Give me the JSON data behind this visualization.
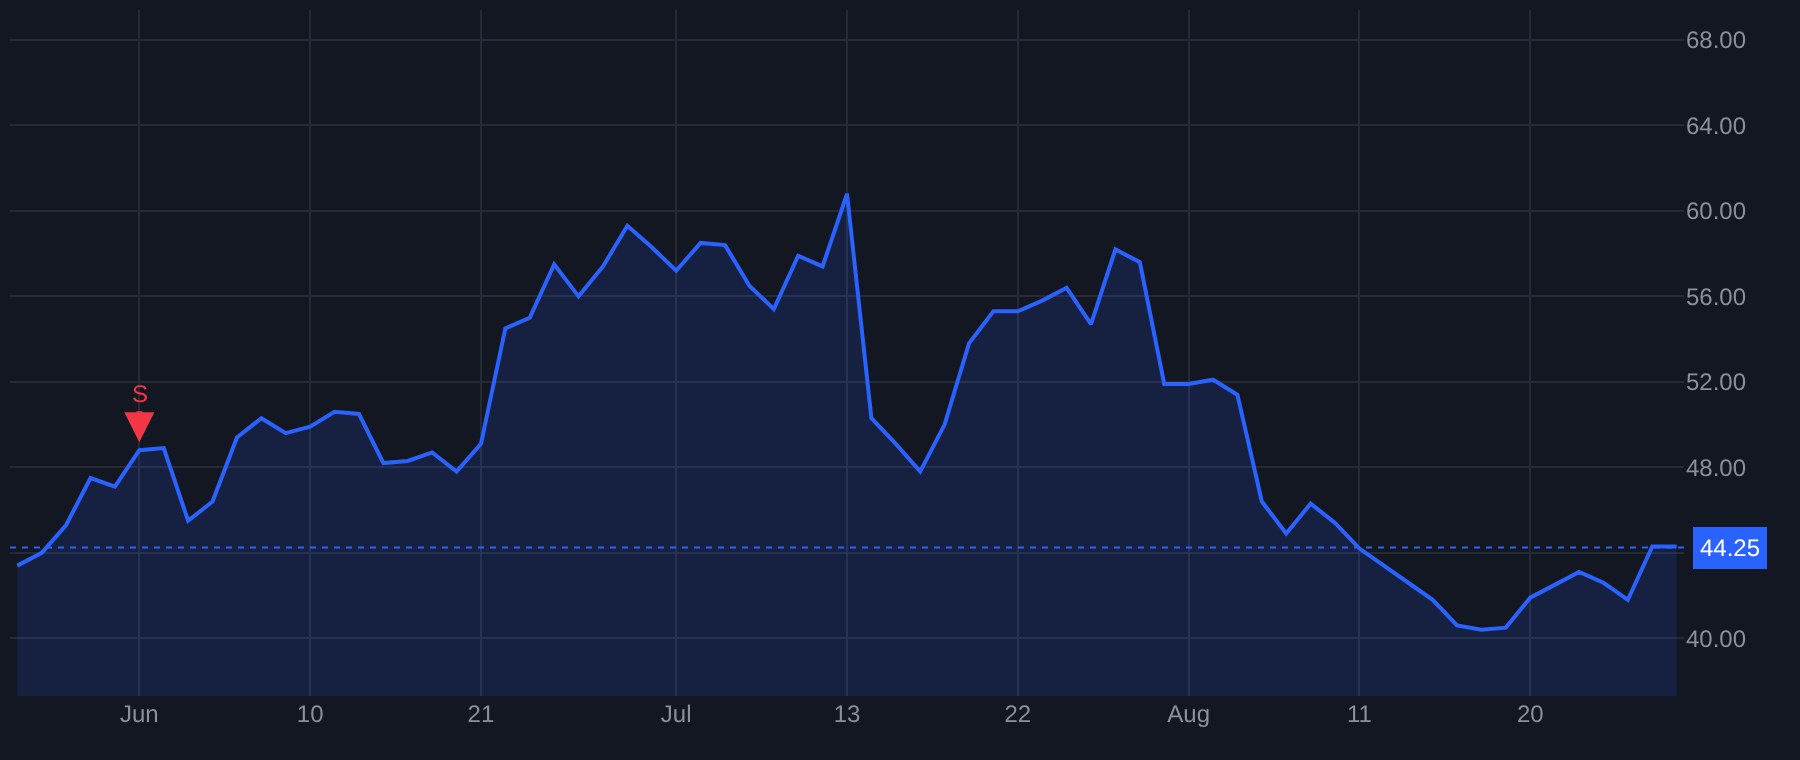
{
  "chart_data": {
    "type": "area",
    "categories": [
      null,
      null,
      null,
      null,
      null,
      "Jun",
      null,
      null,
      null,
      null,
      null,
      null,
      "10",
      null,
      null,
      null,
      null,
      null,
      null,
      "21",
      null,
      null,
      null,
      null,
      null,
      null,
      null,
      "Jul",
      null,
      null,
      null,
      null,
      null,
      null,
      "13",
      null,
      null,
      null,
      null,
      null,
      null,
      "22",
      null,
      null,
      null,
      null,
      null,
      null,
      "Aug",
      null,
      null,
      null,
      null,
      null,
      null,
      "11",
      null,
      null,
      null,
      null,
      null,
      null,
      "20",
      null,
      null,
      null,
      null,
      null,
      null
    ],
    "series": [
      {
        "color": "#2962ff",
        "values": [
          43.4,
          44.0,
          45.3,
          47.5,
          47.1,
          48.8,
          48.9,
          45.5,
          46.4,
          49.4,
          50.3,
          49.6,
          49.9,
          50.6,
          50.5,
          48.2,
          48.3,
          48.7,
          47.8,
          49.1,
          54.5,
          55.0,
          57.5,
          56.0,
          57.4,
          59.3,
          58.3,
          57.2,
          58.5,
          58.4,
          56.5,
          55.4,
          57.9,
          57.4,
          60.8,
          50.3,
          49.1,
          47.8,
          50.0,
          53.8,
          55.3,
          55.3,
          55.8,
          56.4,
          54.7,
          58.2,
          57.6,
          51.9,
          51.9,
          52.1,
          51.4,
          46.4,
          44.9,
          46.3,
          45.4,
          44.2,
          43.4,
          42.6,
          41.8,
          40.6,
          40.4,
          40.5,
          41.9,
          42.5,
          43.1,
          42.6,
          41.8,
          44.3,
          44.3
        ]
      }
    ],
    "ylim": [
      37.3,
      69.4
    ],
    "yticks": [
      {
        "value": 40,
        "label": "40.00"
      },
      {
        "value": 44,
        "label": null
      },
      {
        "value": 48,
        "label": "48.00"
      },
      {
        "value": 52,
        "label": "52.00"
      },
      {
        "value": 56,
        "label": "56.00"
      },
      {
        "value": 60,
        "label": "60.00"
      },
      {
        "value": 64,
        "label": "64.00"
      },
      {
        "value": 68,
        "label": "68.00"
      }
    ],
    "grid": true,
    "marker": "none",
    "line_style": "solid",
    "ref_lines": [
      {
        "axis": "y",
        "value": 44.25,
        "label": "44.25",
        "color": "#2962ff",
        "line_style": "dotted"
      }
    ],
    "annotations": [
      {
        "text": "S",
        "x": "Jun",
        "y": 48.8
      }
    ]
  }
}
